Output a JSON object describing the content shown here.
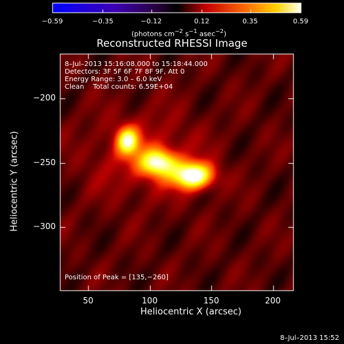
{
  "chart_data": {
    "type": "heatmap",
    "title": "Reconstructed RHESSI Image",
    "xlabel": "Heliocentric X (arcsec)",
    "ylabel": "Heliocentric Y (arcsec)",
    "xlim": [
      27,
      217
    ],
    "ylim": [
      -350,
      -165
    ],
    "x_ticks": [
      "50",
      "100",
      "150",
      "200"
    ],
    "x_tick_values": [
      50,
      100,
      150,
      200
    ],
    "y_ticks": [
      "−200",
      "−250",
      "−300"
    ],
    "y_tick_values": [
      -200,
      -250,
      -300
    ],
    "colorbar": {
      "colormap": "heat (black-red-orange-yellow-white)",
      "range": [
        -0.59,
        0.59
      ],
      "tick_labels": [
        "−0.59",
        "−0.35",
        "−0.12",
        "0.12",
        "0.35",
        "0.59"
      ],
      "tick_values": [
        -0.59,
        -0.35,
        -0.12,
        0.12,
        0.35,
        0.59
      ],
      "units_prefix": "(photons cm",
      "units_exp1": "−2",
      "units_mid": " s",
      "units_exp2": "−1",
      "units_mid2": " asec",
      "units_exp3": "−2",
      "units_suffix": ")"
    },
    "sources": [
      {
        "x": 135,
        "y": -260,
        "sx": 11,
        "sy": 7,
        "peak": 0.59
      },
      {
        "x": 107,
        "y": -250,
        "sx": 10,
        "sy": 7,
        "peak": 0.45
      },
      {
        "x": 82,
        "y": -233,
        "sx": 6,
        "sy": 7,
        "peak": 0.42
      },
      {
        "x": 95,
        "y": -245,
        "sx": 30,
        "sy": 22,
        "peak": 0.12
      }
    ]
  },
  "info": {
    "line1": "8–Jul–2013 15:16:08.000 to 15:18:44.000",
    "line2": "Detectors: 3F 5F 6F 7F 8F 9F, Att 0",
    "line3": "Energy Range: 3.0 – 6.0 keV",
    "line4": "Clean    Total counts: 6.59E+04"
  },
  "peak_text": "Position of Peak = [135,−260]",
  "footer": "8–Jul–2013 15:52"
}
